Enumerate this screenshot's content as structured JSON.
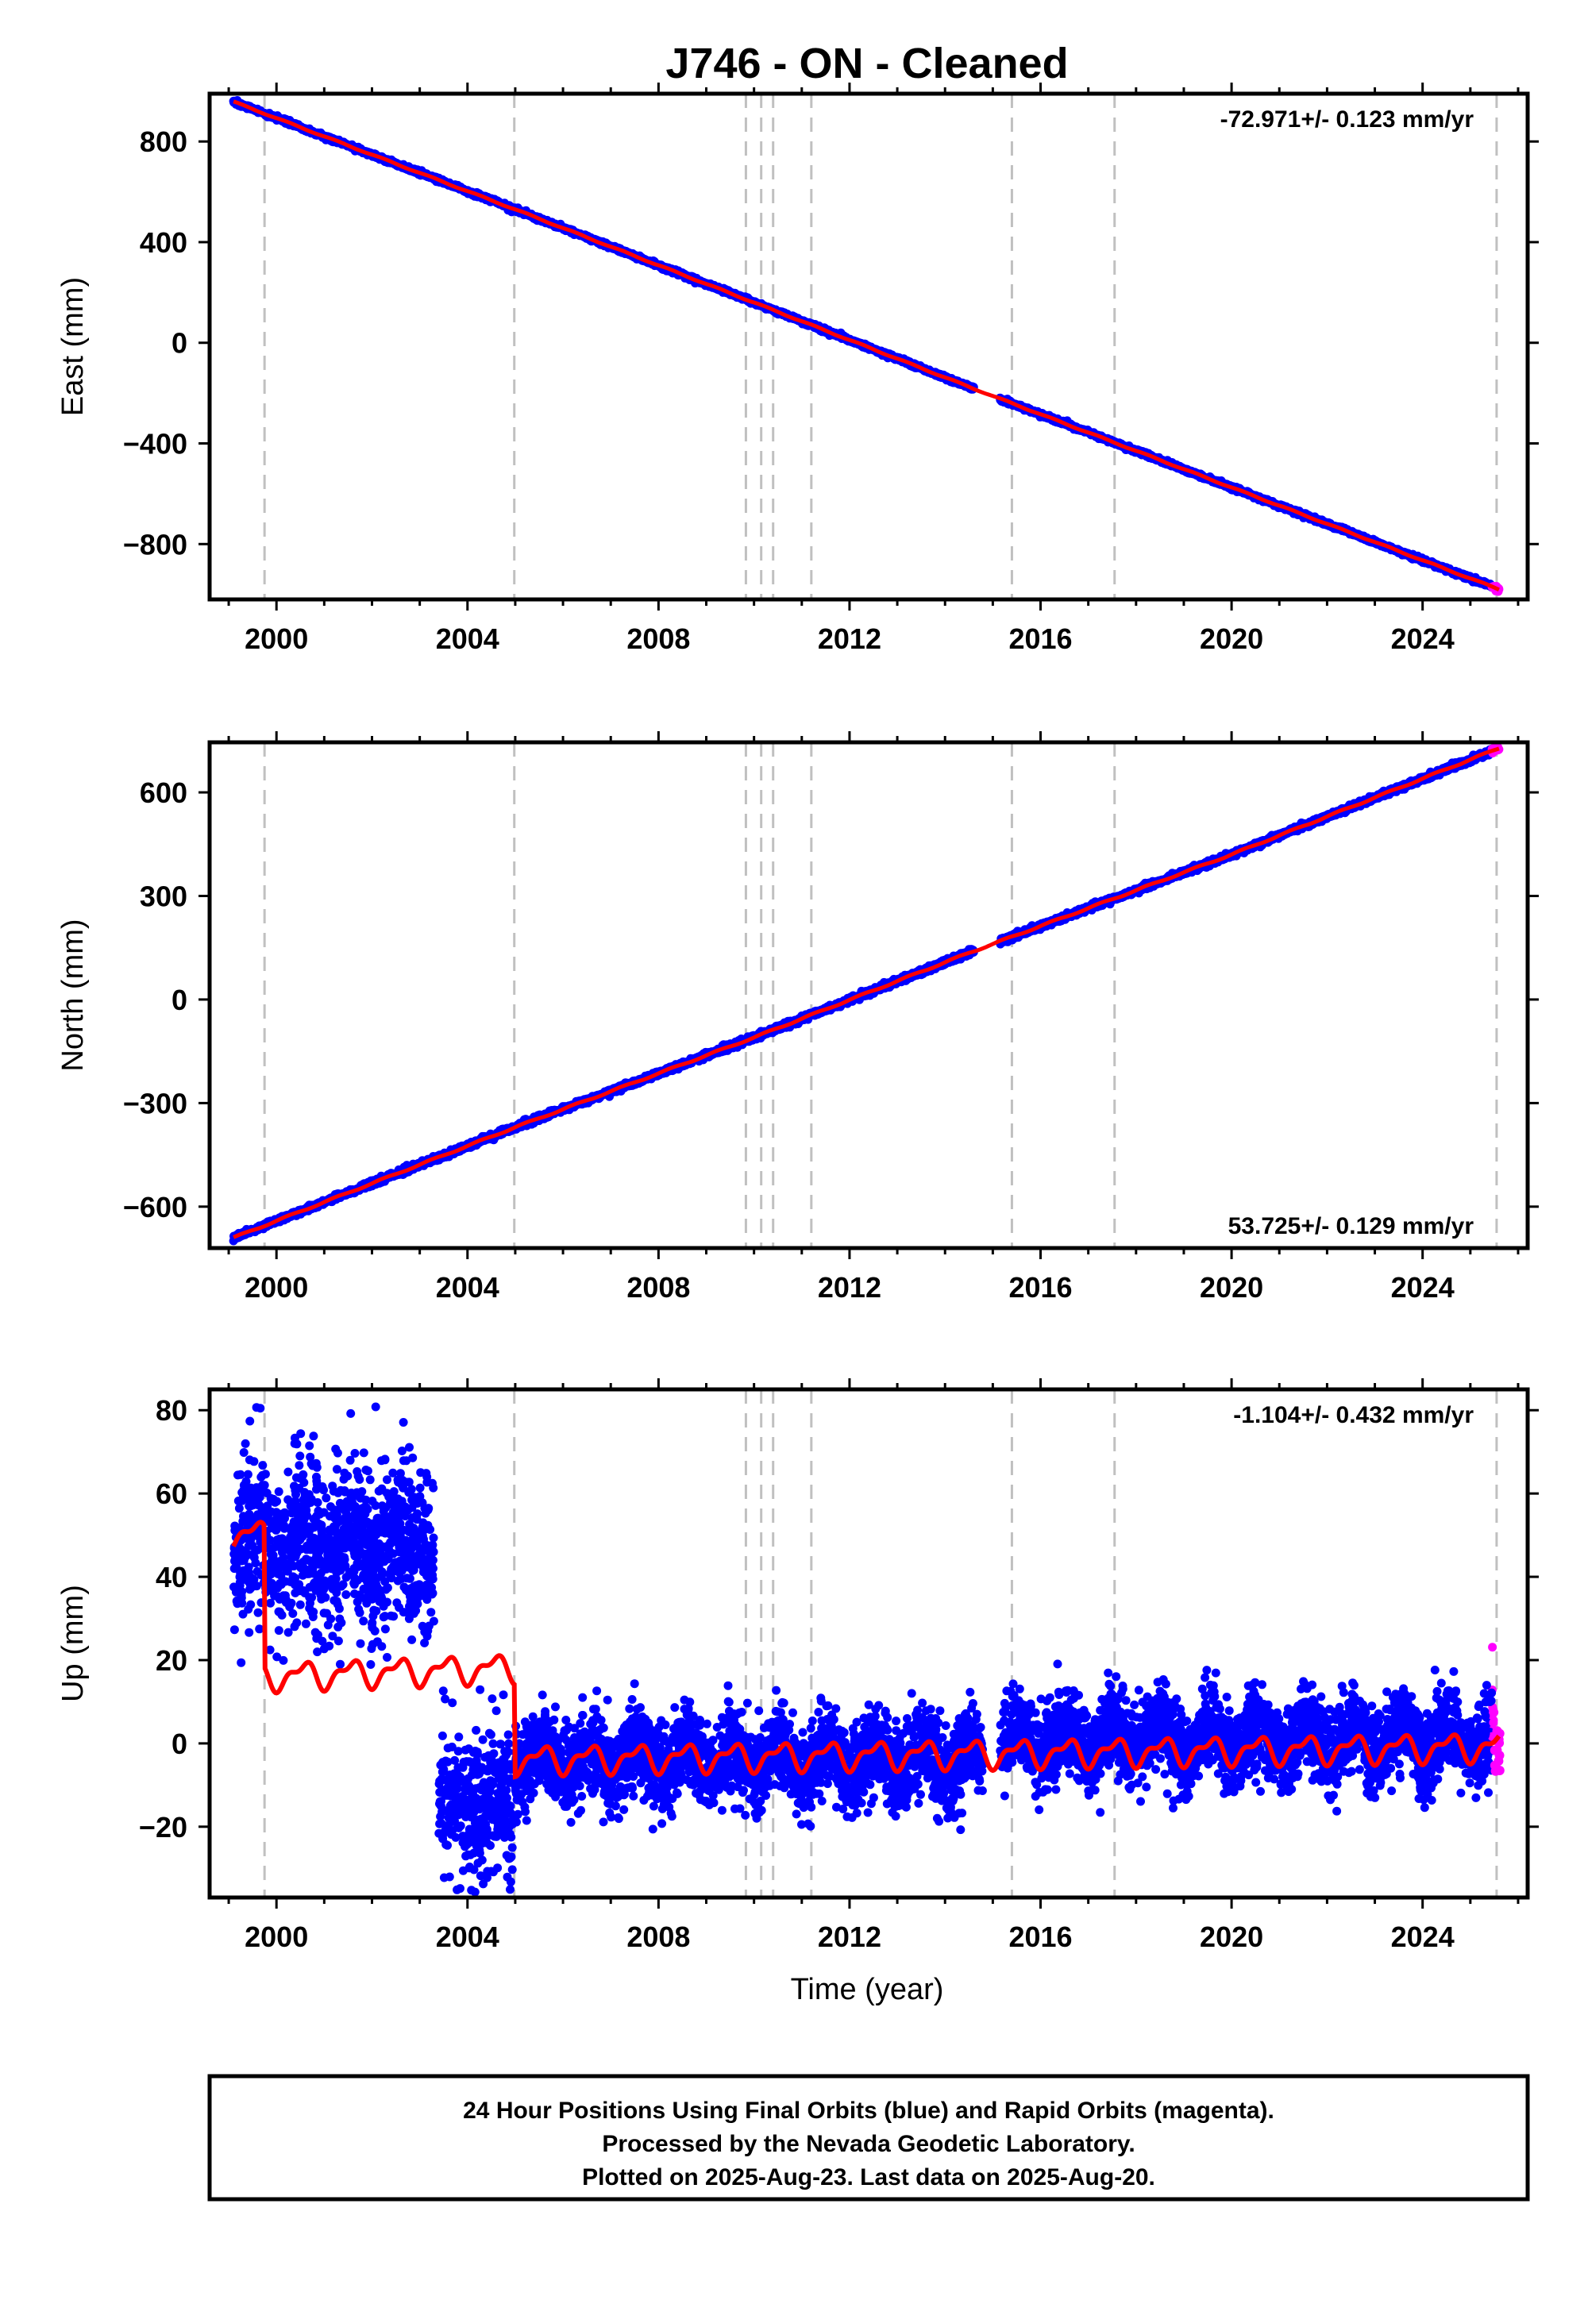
{
  "title": "J746  - ON - Cleaned",
  "colors": {
    "final_orbits": "#0000ff",
    "rapid_orbits": "#ff00ff",
    "model": "#ff0000",
    "event_lines": "#c0c0c0",
    "frame": "#000000"
  },
  "chart_data": [
    {
      "type": "scatter",
      "panel": "east",
      "ylabel": "East (mm)",
      "xlabel": "",
      "rate_label": "-72.971+/- 0.123 mm/yr",
      "rate_position": "top-right",
      "xlim": [
        1998.6,
        2026.2
      ],
      "ylim": [
        -1020,
        990
      ],
      "xticks": [
        2000,
        2004,
        2008,
        2012,
        2016,
        2020,
        2024
      ],
      "xtick_labels": [
        "2000",
        "2004",
        "2008",
        "2012",
        "2016",
        "2020",
        "2024"
      ],
      "yticks": [
        800,
        400,
        0,
        -400,
        -800
      ],
      "ytick_labels": [
        "800",
        "400",
        "0",
        "−400",
        "−800"
      ],
      "series": [
        {
          "x": [
            1999.1,
            2005.0,
            2010.0,
            2014.5,
            2020.0,
            2025.6
          ],
          "y": [
            958,
            530,
            160,
            -175,
            -575,
            -980
          ]
        }
      ],
      "event_lines": [
        1999.75,
        2004.98,
        2009.83,
        2010.15,
        2010.4,
        2011.2,
        2015.4,
        2017.55,
        2025.55
      ],
      "grid": false
    },
    {
      "type": "scatter",
      "panel": "north",
      "ylabel": "North (mm)",
      "xlabel": "",
      "rate_label": "53.725+/- 0.129 mm/yr",
      "rate_position": "bottom-right",
      "xlim": [
        1998.6,
        2026.2
      ],
      "ylim": [
        -720,
        745
      ],
      "xticks": [
        2000,
        2004,
        2008,
        2012,
        2016,
        2020,
        2024
      ],
      "xtick_labels": [
        "2000",
        "2004",
        "2008",
        "2012",
        "2016",
        "2020",
        "2024"
      ],
      "yticks": [
        600,
        300,
        0,
        -300,
        -600
      ],
      "ytick_labels": [
        "600",
        "300",
        "0",
        "−300",
        "−600"
      ],
      "series": [
        {
          "x": [
            1999.1,
            2005.0,
            2010.0,
            2014.5,
            2020.0,
            2025.6
          ],
          "y": [
            -690,
            -370,
            -110,
            135,
            420,
            728
          ]
        }
      ],
      "event_lines": [
        1999.75,
        2004.98,
        2009.83,
        2010.15,
        2010.4,
        2011.2,
        2015.4,
        2017.55,
        2025.55
      ],
      "grid": false
    },
    {
      "type": "scatter",
      "panel": "up",
      "ylabel": "Up (mm)",
      "xlabel": "Time (year)",
      "rate_label": "-1.104+/- 0.432 mm/yr",
      "rate_position": "top-right",
      "xlim": [
        1998.6,
        2026.2
      ],
      "ylim": [
        -37,
        85
      ],
      "xticks": [
        2000,
        2004,
        2008,
        2012,
        2016,
        2020,
        2024
      ],
      "xtick_labels": [
        "2000",
        "2004",
        "2008",
        "2012",
        "2016",
        "2020",
        "2024"
      ],
      "yticks": [
        80,
        60,
        40,
        20,
        0,
        -20
      ],
      "ytick_labels": [
        "80",
        "60",
        "40",
        "20",
        "0",
        "−20"
      ],
      "segments": [
        {
          "start": 1999.1,
          "end": 2003.3,
          "mean": 48,
          "scatter": 18
        },
        {
          "start": 2003.4,
          "end": 2004.95,
          "mean": -15,
          "scatter": 15
        },
        {
          "start": 2005.0,
          "end": 2014.8,
          "mean": -4,
          "scatter": 9
        },
        {
          "start": 2015.15,
          "end": 2025.5,
          "mean": 1,
          "scatter": 9
        }
      ],
      "model_breaks": [
        {
          "x": 1999.75,
          "from": 52,
          "to": 16
        },
        {
          "x": 2004.98,
          "from": 11,
          "to": -4
        }
      ],
      "event_lines": [
        1999.75,
        2004.98,
        2009.83,
        2010.15,
        2010.4,
        2011.2,
        2015.4,
        2017.55,
        2025.55
      ],
      "grid": false
    }
  ],
  "notes": {
    "line1": "24 Hour Positions Using Final Orbits (blue) and Rapid Orbits (magenta).",
    "line2": "Processed by the Nevada Geodetic Laboratory.",
    "line3": "Plotted on 2025-Aug-23. Last data on 2025-Aug-20."
  }
}
